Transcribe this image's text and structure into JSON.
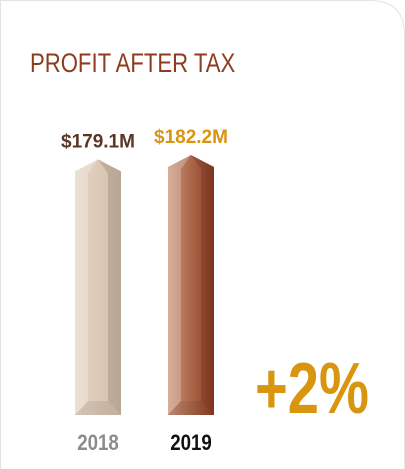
{
  "chart_data": {
    "type": "bar",
    "title": "PROFIT AFTER TAX",
    "categories": [
      "2018",
      "2019"
    ],
    "values": [
      179.1,
      182.2
    ],
    "value_labels": [
      "$179.1M",
      "$182.2M"
    ],
    "colors": [
      [
        "#e6d6c6",
        "#d3bea9"
      ],
      [
        "#c99378",
        "#8e3c20"
      ]
    ],
    "value_label_colors": [
      "#5b3525",
      "#d9950f"
    ],
    "category_label_colors": [
      "#8c8c8c",
      "#111111"
    ],
    "annotation": "+2%",
    "annotation_color": "#d9950f",
    "title_color": "#8e3c20"
  }
}
